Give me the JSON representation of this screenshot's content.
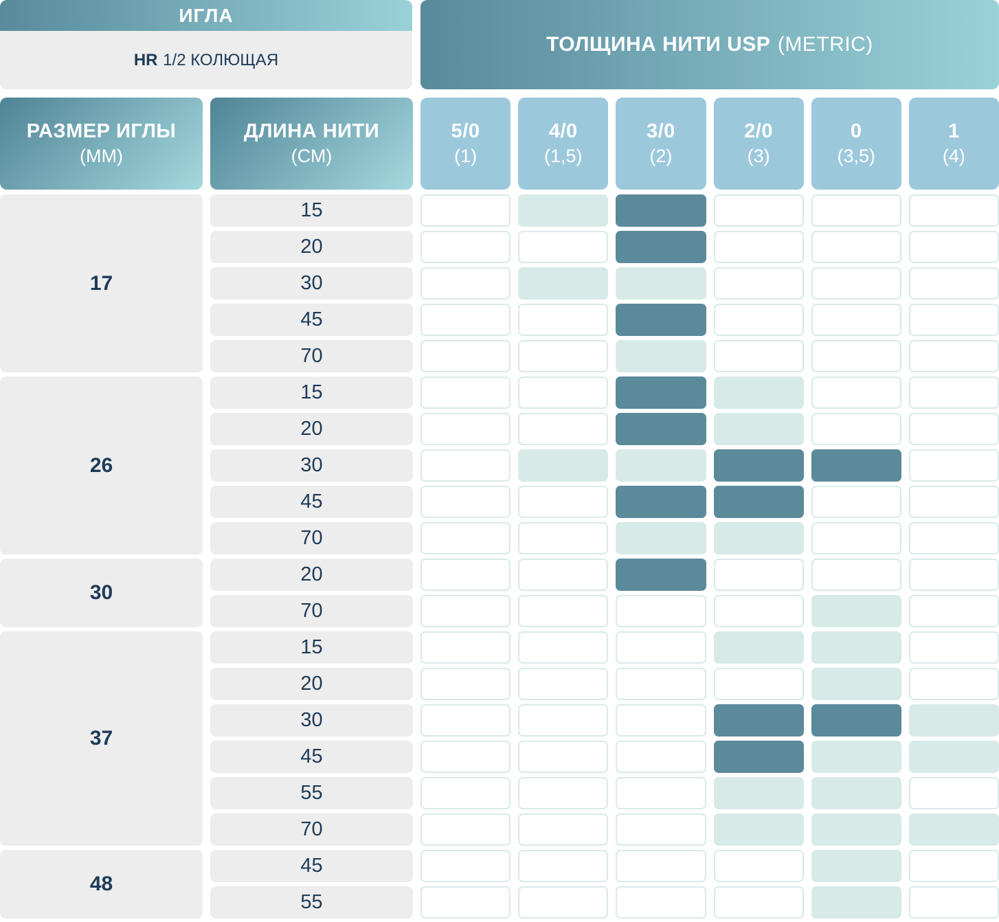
{
  "header": {
    "needle_title": "ИГЛА",
    "needle_subtitle_bold": "HR",
    "needle_subtitle_rest": "1/2 КОЛЮЩАЯ",
    "thread_title_bold": "ТОЛЩИНА НИТИ USP",
    "thread_title_light": "(METRIC)"
  },
  "columns": {
    "needle_size_label": "РАЗМЕР ИГЛЫ",
    "needle_size_unit": "(ММ)",
    "thread_length_label": "ДЛИНА НИТИ",
    "thread_length_unit": "(СМ)",
    "thread_sizes": [
      {
        "usp": "5/0",
        "metric": "(1)"
      },
      {
        "usp": "4/0",
        "metric": "(1,5)"
      },
      {
        "usp": "3/0",
        "metric": "(2)"
      },
      {
        "usp": "2/0",
        "metric": "(3)"
      },
      {
        "usp": "0",
        "metric": "(3,5)"
      },
      {
        "usp": "1",
        "metric": "(4)"
      }
    ]
  },
  "groups": [
    {
      "size": "17",
      "rows": [
        {
          "length": "15",
          "cells": [
            "none",
            "light",
            "dark",
            "none",
            "none",
            "none"
          ]
        },
        {
          "length": "20",
          "cells": [
            "none",
            "none",
            "dark",
            "none",
            "none",
            "none"
          ]
        },
        {
          "length": "30",
          "cells": [
            "none",
            "light",
            "light",
            "none",
            "none",
            "none"
          ]
        },
        {
          "length": "45",
          "cells": [
            "none",
            "none",
            "dark",
            "none",
            "none",
            "none"
          ]
        },
        {
          "length": "70",
          "cells": [
            "none",
            "none",
            "light",
            "none",
            "none",
            "none"
          ]
        }
      ]
    },
    {
      "size": "26",
      "rows": [
        {
          "length": "15",
          "cells": [
            "none",
            "none",
            "dark",
            "light",
            "none",
            "none"
          ]
        },
        {
          "length": "20",
          "cells": [
            "none",
            "none",
            "dark",
            "light",
            "none",
            "none"
          ]
        },
        {
          "length": "30",
          "cells": [
            "none",
            "light",
            "light",
            "dark",
            "dark",
            "none"
          ]
        },
        {
          "length": "45",
          "cells": [
            "none",
            "none",
            "dark",
            "dark",
            "none",
            "none"
          ]
        },
        {
          "length": "70",
          "cells": [
            "none",
            "none",
            "light",
            "light",
            "none",
            "none"
          ]
        }
      ]
    },
    {
      "size": "30",
      "rows": [
        {
          "length": "20",
          "cells": [
            "none",
            "none",
            "dark",
            "none",
            "none",
            "none"
          ]
        },
        {
          "length": "70",
          "cells": [
            "none",
            "none",
            "none",
            "none",
            "light",
            "none"
          ]
        }
      ]
    },
    {
      "size": "37",
      "rows": [
        {
          "length": "15",
          "cells": [
            "none",
            "none",
            "none",
            "light",
            "light",
            "none"
          ]
        },
        {
          "length": "20",
          "cells": [
            "none",
            "none",
            "none",
            "none",
            "light",
            "none"
          ]
        },
        {
          "length": "30",
          "cells": [
            "none",
            "none",
            "none",
            "dark",
            "dark",
            "light"
          ]
        },
        {
          "length": "45",
          "cells": [
            "none",
            "none",
            "none",
            "dark",
            "light",
            "light"
          ]
        },
        {
          "length": "55",
          "cells": [
            "none",
            "none",
            "none",
            "light",
            "light",
            "none"
          ]
        },
        {
          "length": "70",
          "cells": [
            "none",
            "none",
            "none",
            "light",
            "light",
            "light"
          ]
        }
      ]
    },
    {
      "size": "48",
      "rows": [
        {
          "length": "45",
          "cells": [
            "none",
            "none",
            "none",
            "none",
            "light",
            "none"
          ]
        },
        {
          "length": "55",
          "cells": [
            "none",
            "none",
            "none",
            "none",
            "light",
            "none"
          ]
        }
      ]
    }
  ],
  "colors": {
    "dark_cell": "#5b8a9b",
    "light_cell": "#d7eae8",
    "empty_cell_border": "#d9eae9",
    "label_bg": "#ededed",
    "navy_text": "#1d3b58",
    "header_gradient_start": "#588a9b",
    "header_gradient_end": "#99d1d9",
    "thread_size_header_bg": "#9cc8dc"
  },
  "chart_data": {
    "type": "table",
    "title": "ИГЛА HR 1/2 КОЛЮЩАЯ — ТОЛЩИНА НИТИ USP (METRIC)",
    "columns": [
      "5/0 (1)",
      "4/0 (1,5)",
      "3/0 (2)",
      "2/0 (3)",
      "0 (3,5)",
      "1 (4)"
    ],
    "row_headers": [
      "РАЗМЕР ИГЛЫ (ММ)",
      "ДЛИНА НИТИ (СМ)"
    ],
    "rows": [
      {
        "needle_mm": "17",
        "length_cm": "15",
        "availability": [
          "",
          "light",
          "dark",
          "",
          "",
          ""
        ]
      },
      {
        "needle_mm": "17",
        "length_cm": "20",
        "availability": [
          "",
          "",
          "dark",
          "",
          "",
          ""
        ]
      },
      {
        "needle_mm": "17",
        "length_cm": "30",
        "availability": [
          "",
          "light",
          "light",
          "",
          "",
          ""
        ]
      },
      {
        "needle_mm": "17",
        "length_cm": "45",
        "availability": [
          "",
          "",
          "dark",
          "",
          "",
          ""
        ]
      },
      {
        "needle_mm": "17",
        "length_cm": "70",
        "availability": [
          "",
          "",
          "light",
          "",
          "",
          ""
        ]
      },
      {
        "needle_mm": "26",
        "length_cm": "15",
        "availability": [
          "",
          "",
          "dark",
          "light",
          "",
          ""
        ]
      },
      {
        "needle_mm": "26",
        "length_cm": "20",
        "availability": [
          "",
          "",
          "dark",
          "light",
          "",
          ""
        ]
      },
      {
        "needle_mm": "26",
        "length_cm": "30",
        "availability": [
          "",
          "light",
          "light",
          "dark",
          "dark",
          ""
        ]
      },
      {
        "needle_mm": "26",
        "length_cm": "45",
        "availability": [
          "",
          "",
          "dark",
          "dark",
          "",
          ""
        ]
      },
      {
        "needle_mm": "26",
        "length_cm": "70",
        "availability": [
          "",
          "",
          "light",
          "light",
          "",
          ""
        ]
      },
      {
        "needle_mm": "30",
        "length_cm": "20",
        "availability": [
          "",
          "",
          "dark",
          "",
          "",
          ""
        ]
      },
      {
        "needle_mm": "30",
        "length_cm": "70",
        "availability": [
          "",
          "",
          "",
          "",
          "light",
          ""
        ]
      },
      {
        "needle_mm": "37",
        "length_cm": "15",
        "availability": [
          "",
          "",
          "",
          "light",
          "light",
          ""
        ]
      },
      {
        "needle_mm": "37",
        "length_cm": "20",
        "availability": [
          "",
          "",
          "",
          "",
          "light",
          ""
        ]
      },
      {
        "needle_mm": "37",
        "length_cm": "30",
        "availability": [
          "",
          "",
          "",
          "dark",
          "dark",
          "light"
        ]
      },
      {
        "needle_mm": "37",
        "length_cm": "45",
        "availability": [
          "",
          "",
          "",
          "dark",
          "light",
          "light"
        ]
      },
      {
        "needle_mm": "37",
        "length_cm": "55",
        "availability": [
          "",
          "",
          "",
          "light",
          "light",
          ""
        ]
      },
      {
        "needle_mm": "37",
        "length_cm": "70",
        "availability": [
          "",
          "",
          "",
          "light",
          "light",
          "light"
        ]
      },
      {
        "needle_mm": "48",
        "length_cm": "45",
        "availability": [
          "",
          "",
          "",
          "",
          "light",
          ""
        ]
      },
      {
        "needle_mm": "48",
        "length_cm": "55",
        "availability": [
          "",
          "",
          "",
          "",
          "light",
          ""
        ]
      }
    ]
  }
}
